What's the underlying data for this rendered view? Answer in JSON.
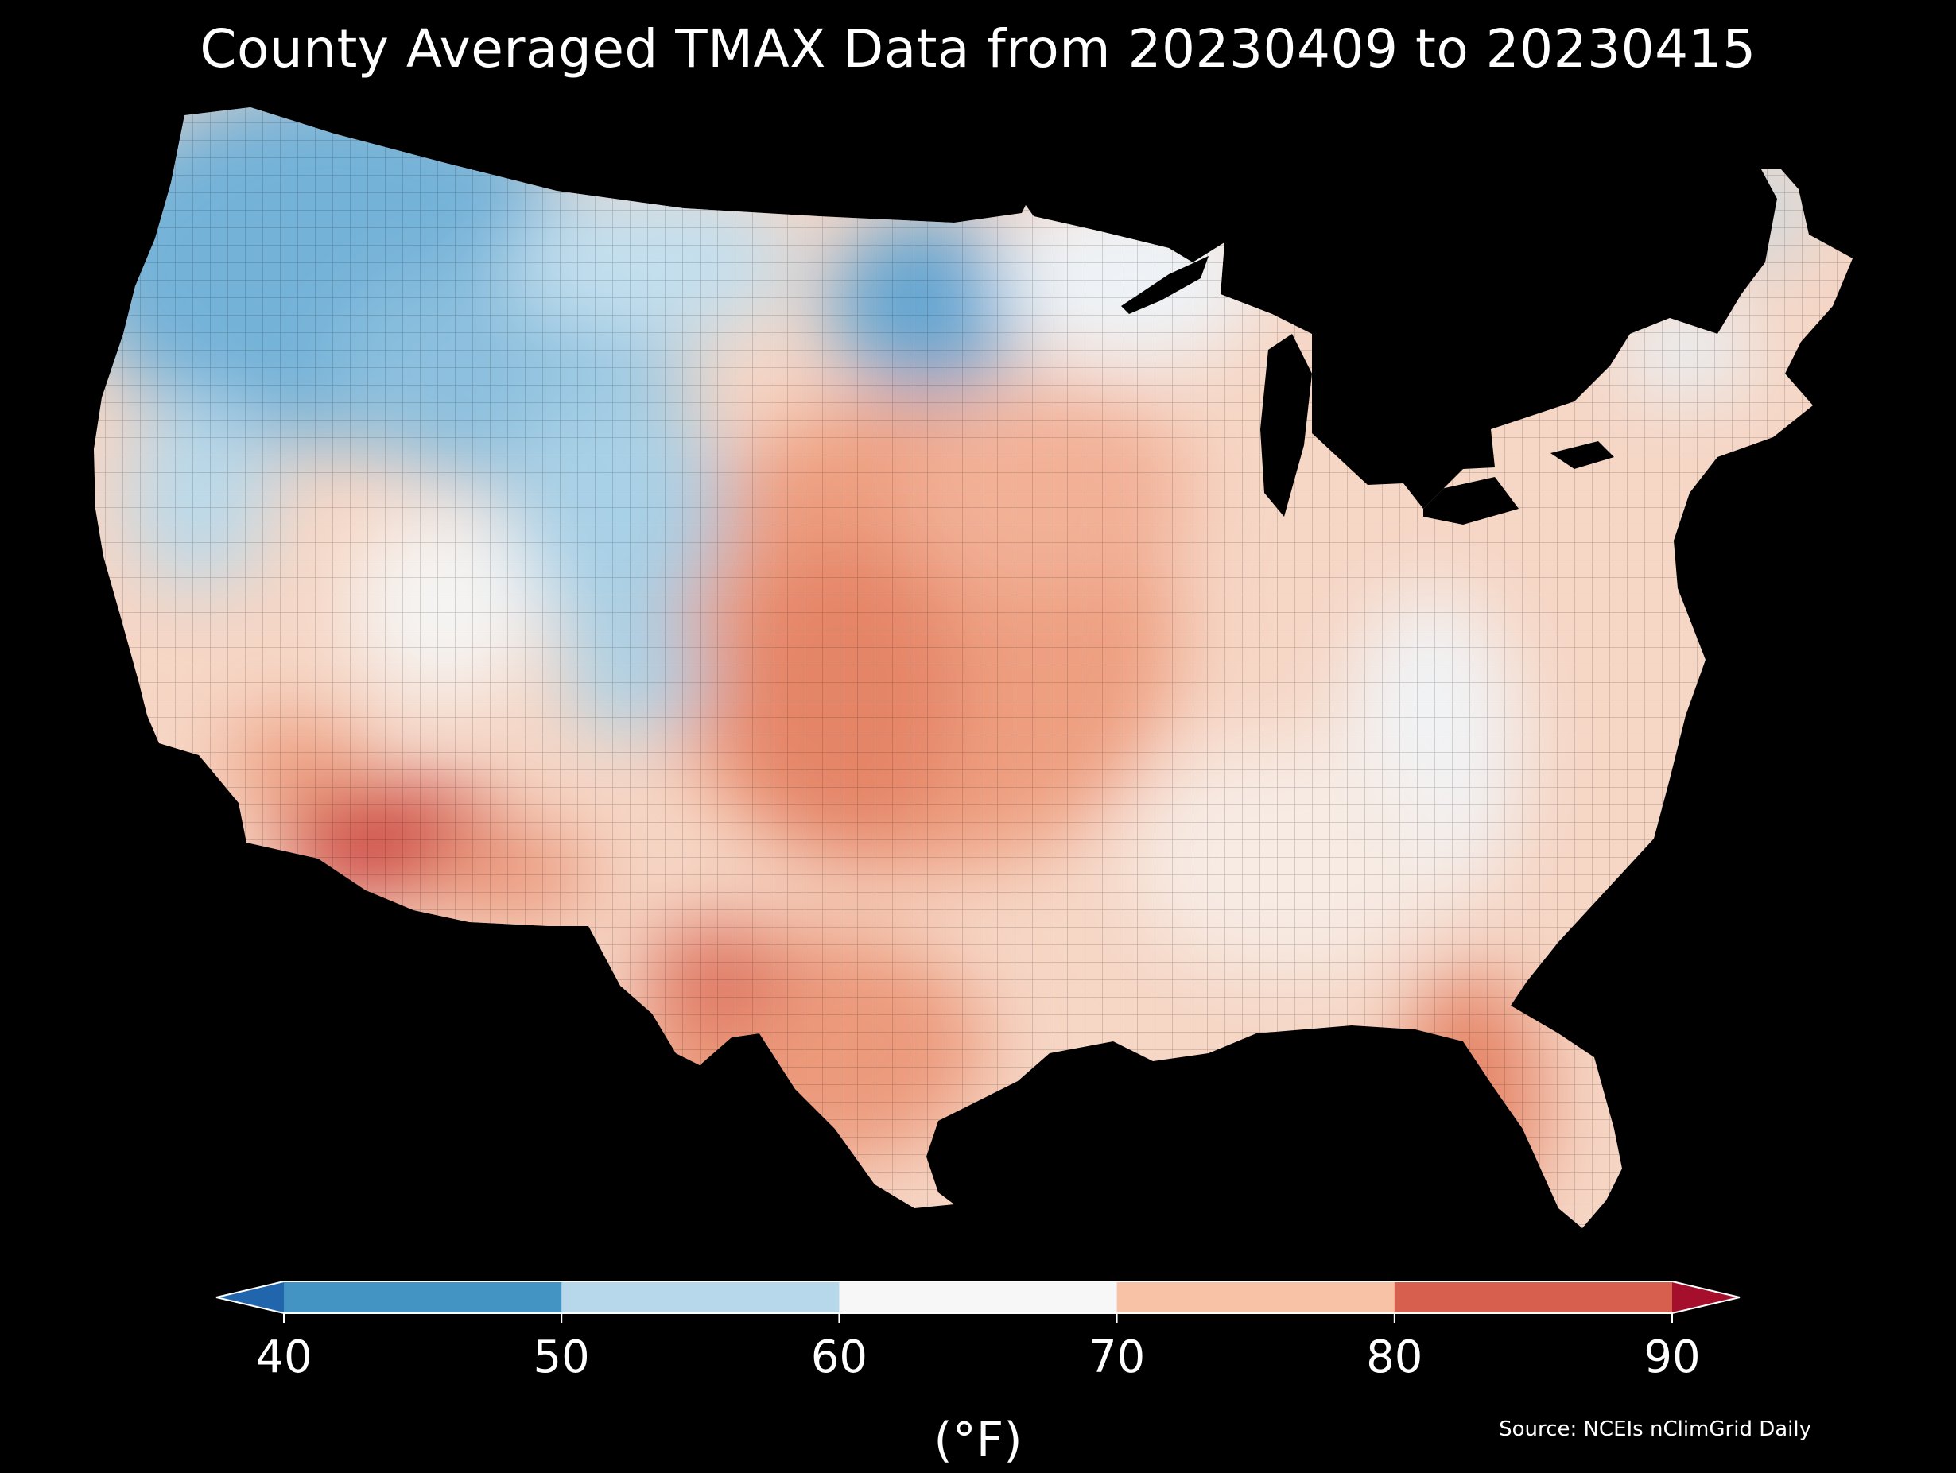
{
  "title": "County Averaged TMAX Data from 20230409 to 20230415",
  "source": "Source: NCEIs nClimGrid Daily",
  "colorbar": {
    "unit": "(°F)",
    "ticks": [
      "40",
      "50",
      "60",
      "70",
      "80",
      "90"
    ],
    "extend": "both",
    "bins": [
      {
        "range": "<40",
        "color": "#2166ac"
      },
      {
        "range": "40-50",
        "color": "#4393c3"
      },
      {
        "range": "50-60",
        "color": "#b7d8ea"
      },
      {
        "range": "60-70",
        "color": "#f7f7f7"
      },
      {
        "range": "70-80",
        "color": "#f8c2a6"
      },
      {
        "range": "80-90",
        "color": "#d6604d"
      },
      {
        "range": ">90",
        "color": "#a50f2c"
      }
    ]
  }
}
